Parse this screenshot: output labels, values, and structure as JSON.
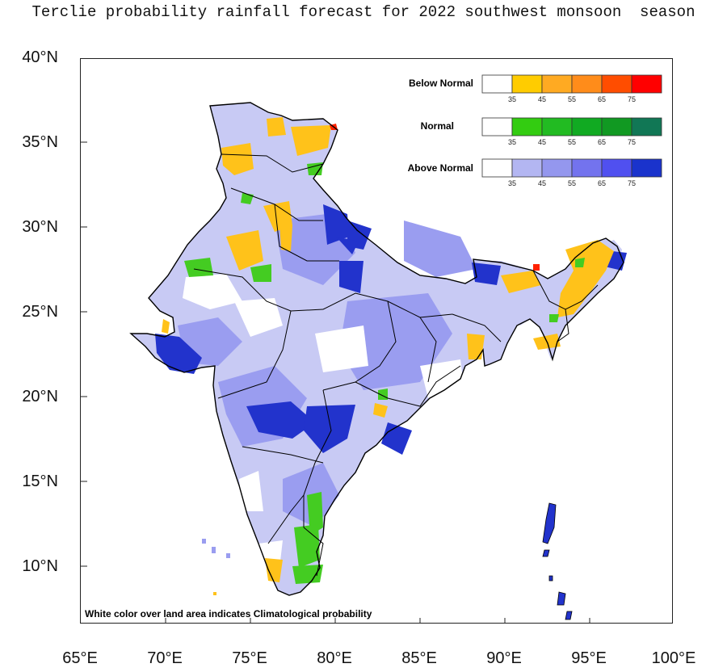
{
  "title": "Terclie probability rainfall forecast for 2022 southwest monsoon  season",
  "note": "White color over land area indicates Climatological probability",
  "axes": {
    "lat_labels": [
      "40°N",
      "35°N",
      "30°N",
      "25°N",
      "20°N",
      "15°N",
      "10°N"
    ],
    "lon_labels": [
      "65°E",
      "70°E",
      "75°E",
      "80°E",
      "85°E",
      "90°E",
      "95°E",
      "100°E"
    ]
  },
  "legend": {
    "categories": [
      {
        "name": "Below Normal",
        "colors": [
          "#ffffff",
          "#ffcc00",
          "#ffaa22",
          "#ff8c1a",
          "#ff4d00",
          "#ff0000"
        ]
      },
      {
        "name": "Normal",
        "colors": [
          "#ffffff",
          "#33cc11",
          "#22bb22",
          "#11aa22",
          "#119922",
          "#117755"
        ]
      },
      {
        "name": "Above Normal",
        "colors": [
          "#ffffff",
          "#b3b6f2",
          "#9497ee",
          "#7373ee",
          "#5050f0",
          "#1a33cc"
        ]
      }
    ],
    "ticks": [
      "35",
      "45",
      "55",
      "65",
      "75"
    ]
  },
  "colors": {
    "land_blue_light": "#c8caf4",
    "land_blue_mid": "#9a9df0",
    "land_blue_dark": "#2233cc",
    "yellow": "#ffc21a",
    "green": "#44cc22",
    "boundary": "#000000"
  }
}
